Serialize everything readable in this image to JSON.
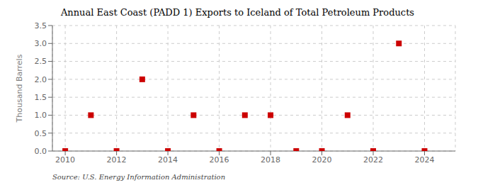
{
  "chart_data": {
    "type": "scatter",
    "title": "Annual East Coast (PADD 1) Exports to Iceland of Total Petroleum Products",
    "y_label": "Thousand Barrels",
    "annotations": [
      "Source: U.S. Energy Information Administration"
    ],
    "x": [
      2010,
      2011,
      2012,
      2013,
      2014,
      2015,
      2016,
      2017,
      2018,
      2019,
      2020,
      2021,
      2022,
      2023,
      2024
    ],
    "values": [
      0.0,
      1.0,
      0.0,
      2.0,
      0.0,
      1.0,
      0.0,
      1.0,
      1.0,
      0.0,
      0.0,
      1.0,
      0.0,
      3.0,
      0.0
    ],
    "color": "#cc0000",
    "marker": "square",
    "xlim": [
      2009.5,
      2025.2
    ],
    "xticks": [
      2010,
      2012,
      2014,
      2016,
      2018,
      2020,
      2022,
      2024
    ],
    "ylim": [
      0.0,
      3.5
    ],
    "yticks": [
      {
        "value": 0.0,
        "label": "0.0"
      },
      {
        "value": 0.5,
        "label": "0.5"
      },
      {
        "value": 1.0,
        "label": "1.0"
      },
      {
        "value": 1.5,
        "label": "1.5"
      },
      {
        "value": 2.0,
        "label": "2.0"
      },
      {
        "value": 2.5,
        "label": "2.5"
      },
      {
        "value": 3.0,
        "label": "3.0"
      },
      {
        "value": 3.5,
        "label": "3.5"
      }
    ],
    "grid": true
  }
}
